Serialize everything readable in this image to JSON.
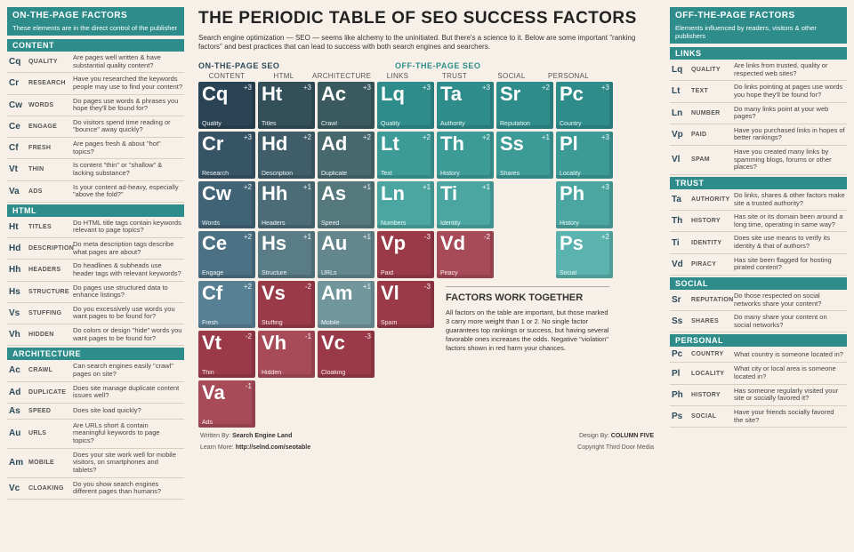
{
  "title": "THE PERIODIC TABLE OF SEO SUCCESS FACTORS",
  "intro": "Search engine optimization — SEO — seems like alchemy to the uninitiated. But there's a science to it. Below are some important \"ranking factors\" and best practices that can lead to success with both search engines and searchers.",
  "group_on": "ON-THE-PAGE SEO",
  "group_off": "OFF-THE-PAGE SEO",
  "columns": [
    "CONTENT",
    "HTML",
    "ARCHITECTURE",
    "LINKS",
    "TRUST",
    "SOCIAL",
    "PERSONAL"
  ],
  "colors": {
    "content": [
      "#2b4455",
      "#365466",
      "#416376",
      "#4c7184",
      "#588094",
      "#658fa3",
      "#729db0"
    ],
    "html": [
      "#334f5a",
      "#3f5e69",
      "#4c6d78",
      "#5a7c87",
      "#688b96"
    ],
    "arch": [
      "#3a5a5f",
      "#47696e",
      "#55787d",
      "#63878c",
      "#71969b"
    ],
    "links": [
      "#2e8d8b",
      "#3c9a97",
      "#4ba6a2"
    ],
    "trust": [
      "#3c9a97",
      "#4ba6a2",
      "#5ab3ae"
    ],
    "social": [
      "#47a6a2",
      "#58b3af"
    ],
    "personal": [
      "#4ba6a2",
      "#5ab3ae",
      "#6ac0ba",
      "#7acdC6",
      "#89d9d1"
    ],
    "violation": "#9a3a48",
    "violation_light": "#a84b58"
  },
  "tiles": [
    {
      "r": 1,
      "c": 1,
      "sy": "Cq",
      "nm": "Quality",
      "wt": "+3",
      "col": "#2b4455"
    },
    {
      "r": 1,
      "c": 2,
      "sy": "Ht",
      "nm": "Titles",
      "wt": "+3",
      "col": "#334f5a"
    },
    {
      "r": 1,
      "c": 3,
      "sy": "Ac",
      "nm": "Crawl",
      "wt": "+3",
      "col": "#3a5a5f"
    },
    {
      "r": 1,
      "c": 4,
      "sy": "Lq",
      "nm": "Quality",
      "wt": "+3",
      "col": "#2e8d8b"
    },
    {
      "r": 1,
      "c": 5,
      "sy": "Ta",
      "nm": "Authority",
      "wt": "+3",
      "col": "#2e8d8b"
    },
    {
      "r": 1,
      "c": 6,
      "sy": "Sr",
      "nm": "Reputation",
      "wt": "+2",
      "col": "#2e8d8b"
    },
    {
      "r": 1,
      "c": 7,
      "sy": "Pc",
      "nm": "Country",
      "wt": "+3",
      "col": "#2e8d8b"
    },
    {
      "r": 2,
      "c": 1,
      "sy": "Cr",
      "nm": "Research",
      "wt": "+3",
      "col": "#365466"
    },
    {
      "r": 2,
      "c": 2,
      "sy": "Hd",
      "nm": "Description",
      "wt": "+2",
      "col": "#3f5e69"
    },
    {
      "r": 2,
      "c": 3,
      "sy": "Ad",
      "nm": "Duplicate",
      "wt": "+2",
      "col": "#47696e"
    },
    {
      "r": 2,
      "c": 4,
      "sy": "Lt",
      "nm": "Text",
      "wt": "+2",
      "col": "#3c9a97"
    },
    {
      "r": 2,
      "c": 5,
      "sy": "Th",
      "nm": "History",
      "wt": "+2",
      "col": "#3c9a97"
    },
    {
      "r": 2,
      "c": 6,
      "sy": "Ss",
      "nm": "Shares",
      "wt": "+1",
      "col": "#3c9a97"
    },
    {
      "r": 2,
      "c": 7,
      "sy": "Pl",
      "nm": "Locality",
      "wt": "+3",
      "col": "#3c9a97"
    },
    {
      "r": 3,
      "c": 1,
      "sy": "Cw",
      "nm": "Words",
      "wt": "+2",
      "col": "#416376"
    },
    {
      "r": 3,
      "c": 2,
      "sy": "Hh",
      "nm": "Headers",
      "wt": "+1",
      "col": "#4c6d78"
    },
    {
      "r": 3,
      "c": 3,
      "sy": "As",
      "nm": "Speed",
      "wt": "+1",
      "col": "#55787d"
    },
    {
      "r": 3,
      "c": 4,
      "sy": "Ln",
      "nm": "Numbers",
      "wt": "+1",
      "col": "#4ba6a2"
    },
    {
      "r": 3,
      "c": 5,
      "sy": "Ti",
      "nm": "Identity",
      "wt": "+1",
      "col": "#4ba6a2"
    },
    {
      "r": 3,
      "c": 7,
      "sy": "Ph",
      "nm": "History",
      "wt": "+3",
      "col": "#4ba6a2"
    },
    {
      "r": 4,
      "c": 1,
      "sy": "Ce",
      "nm": "Engage",
      "wt": "+2",
      "col": "#4c7184"
    },
    {
      "r": 4,
      "c": 2,
      "sy": "Hs",
      "nm": "Structure",
      "wt": "+1",
      "col": "#5a7c87"
    },
    {
      "r": 4,
      "c": 3,
      "sy": "Au",
      "nm": "URLs",
      "wt": "+1",
      "col": "#63878c"
    },
    {
      "r": 4,
      "c": 4,
      "sy": "Vp",
      "nm": "Paid",
      "wt": "-3",
      "col": "#9a3a48"
    },
    {
      "r": 4,
      "c": 5,
      "sy": "Vd",
      "nm": "Piracy",
      "wt": "-2",
      "col": "#a84b58"
    },
    {
      "r": 4,
      "c": 7,
      "sy": "Ps",
      "nm": "Social",
      "wt": "+2",
      "col": "#5ab3ae"
    },
    {
      "r": 5,
      "c": 1,
      "sy": "Cf",
      "nm": "Fresh",
      "wt": "+2",
      "col": "#588094"
    },
    {
      "r": 5,
      "c": 2,
      "sy": "Vs",
      "nm": "Stuffing",
      "wt": "-2",
      "col": "#9a3a48"
    },
    {
      "r": 5,
      "c": 3,
      "sy": "Am",
      "nm": "Mobile",
      "wt": "+1",
      "col": "#71969b"
    },
    {
      "r": 5,
      "c": 4,
      "sy": "Vl",
      "nm": "Spam",
      "wt": "-3",
      "col": "#9a3a48"
    },
    {
      "r": 6,
      "c": 1,
      "sy": "Vt",
      "nm": "Thin",
      "wt": "-2",
      "col": "#9a3a48"
    },
    {
      "r": 6,
      "c": 2,
      "sy": "Vh",
      "nm": "Hidden",
      "wt": "-1",
      "col": "#a84b58"
    },
    {
      "r": 6,
      "c": 3,
      "sy": "Vc",
      "nm": "Cloaking",
      "wt": "-3",
      "col": "#9a3a48"
    },
    {
      "r": 7,
      "c": 1,
      "sy": "Va",
      "nm": "Ads",
      "wt": "-1",
      "col": "#a84b58"
    }
  ],
  "fwt_title": "FACTORS WORK TOGETHER",
  "fwt_body": "All factors on the table are important, but those marked 3 carry more weight than 1 or 2. No single factor guarantees top rankings or success, but having several favorable ones increases the odds. Negative \"violation\" factors shown in red harm your chances.",
  "left": {
    "head": "ON-THE-PAGE FACTORS",
    "sub": "These elements are in the direct control of the publisher",
    "sections": [
      {
        "title": "CONTENT",
        "rows": [
          {
            "sy": "Cq",
            "nm": "QUALITY",
            "q": "Are pages well written & have substantial quality content?"
          },
          {
            "sy": "Cr",
            "nm": "RESEARCH",
            "q": "Have you researched the keywords people may use to find your content?"
          },
          {
            "sy": "Cw",
            "nm": "WORDS",
            "q": "Do pages use words & phrases you hope they'll be found for?"
          },
          {
            "sy": "Ce",
            "nm": "ENGAGE",
            "q": "Do visitors spend time reading or \"bounce\" away quickly?"
          },
          {
            "sy": "Cf",
            "nm": "FRESH",
            "q": "Are pages fresh & about \"hot\" topics?"
          },
          {
            "sy": "Vt",
            "nm": "THIN",
            "q": "Is content \"thin\" or \"shallow\" & lacking substance?"
          },
          {
            "sy": "Va",
            "nm": "ADS",
            "q": "Is your content ad-heavy, especially \"above the fold?\""
          }
        ]
      },
      {
        "title": "HTML",
        "rows": [
          {
            "sy": "Ht",
            "nm": "TITLES",
            "q": "Do HTML title tags contain keywords relevant to page topics?"
          },
          {
            "sy": "Hd",
            "nm": "DESCRIPTION",
            "q": "Do meta description tags describe what pages are about?"
          },
          {
            "sy": "Hh",
            "nm": "HEADERS",
            "q": "Do headlines & subheads use header tags with relevant keywords?"
          },
          {
            "sy": "Hs",
            "nm": "STRUCTURE",
            "q": "Do pages use structured data to enhance listings?"
          },
          {
            "sy": "Vs",
            "nm": "STUFFING",
            "q": "Do you excessively use words you want pages to be found for?"
          },
          {
            "sy": "Vh",
            "nm": "HIDDEN",
            "q": "Do colors or design \"hide\" words you want pages to be found for?"
          }
        ]
      },
      {
        "title": "ARCHITECTURE",
        "rows": [
          {
            "sy": "Ac",
            "nm": "CRAWL",
            "q": "Can search engines easily \"crawl\" pages on site?"
          },
          {
            "sy": "Ad",
            "nm": "DUPLICATE",
            "q": "Does site manage duplicate content issues well?"
          },
          {
            "sy": "As",
            "nm": "SPEED",
            "q": "Does site load quickly?"
          },
          {
            "sy": "Au",
            "nm": "URLS",
            "q": "Are URLs short & contain meaningful keywords to page topics?"
          },
          {
            "sy": "Am",
            "nm": "MOBILE",
            "q": "Does your site work well for mobile visitors, on smartphones and tablets?"
          },
          {
            "sy": "Vc",
            "nm": "CLOAKING",
            "q": "Do you show search engines different pages than humans?"
          }
        ]
      }
    ]
  },
  "right": {
    "head": "OFF-THE-PAGE FACTORS",
    "sub": "Elements influenced by readers, visitors & other publishers",
    "sections": [
      {
        "title": "LINKS",
        "rows": [
          {
            "sy": "Lq",
            "nm": "QUALITY",
            "q": "Are links from trusted, quality or respected web sites?"
          },
          {
            "sy": "Lt",
            "nm": "TEXT",
            "q": "Do links pointing at pages use words you hope they'll be found for?"
          },
          {
            "sy": "Ln",
            "nm": "NUMBER",
            "q": "Do many links point at your web pages?"
          },
          {
            "sy": "Vp",
            "nm": "PAID",
            "q": "Have you purchased links in hopes of better rankings?"
          },
          {
            "sy": "Vl",
            "nm": "SPAM",
            "q": "Have you created many links by spamming blogs, forums or other places?"
          }
        ]
      },
      {
        "title": "TRUST",
        "rows": [
          {
            "sy": "Ta",
            "nm": "AUTHORITY",
            "q": "Do links, shares & other factors make site a trusted authority?"
          },
          {
            "sy": "Th",
            "nm": "HISTORY",
            "q": "Has site or its domain been around a long time, operating in same way?"
          },
          {
            "sy": "Ti",
            "nm": "IDENTITY",
            "q": "Does site use means to verify its identity & that of authors?"
          },
          {
            "sy": "Vd",
            "nm": "PIRACY",
            "q": "Has site been flagged for hosting pirated content?"
          }
        ]
      },
      {
        "title": "SOCIAL",
        "rows": [
          {
            "sy": "Sr",
            "nm": "REPUTATION",
            "q": "Do those respected on social networks share your content?"
          },
          {
            "sy": "Ss",
            "nm": "SHARES",
            "q": "Do many share your content on social networks?"
          }
        ]
      },
      {
        "title": "PERSONAL",
        "rows": [
          {
            "sy": "Pc",
            "nm": "COUNTRY",
            "q": "What country is someone located in?"
          },
          {
            "sy": "Pl",
            "nm": "LOCALITY",
            "q": "What city or local area is someone located in?"
          },
          {
            "sy": "Ph",
            "nm": "HISTORY",
            "q": "Has someone regularly visited your site or socially favored it?"
          },
          {
            "sy": "Ps",
            "nm": "SOCIAL",
            "q": "Have your friends socially favored the site?"
          }
        ]
      }
    ]
  },
  "credits": {
    "written_lbl": "Written By:",
    "written": "Search Engine Land",
    "design_lbl": "Design By:",
    "design": "COLUMN FIVE",
    "learn_lbl": "Learn More:",
    "learn": "http://selnd.com/seotable",
    "copy": "Copyright Third Door Media"
  }
}
